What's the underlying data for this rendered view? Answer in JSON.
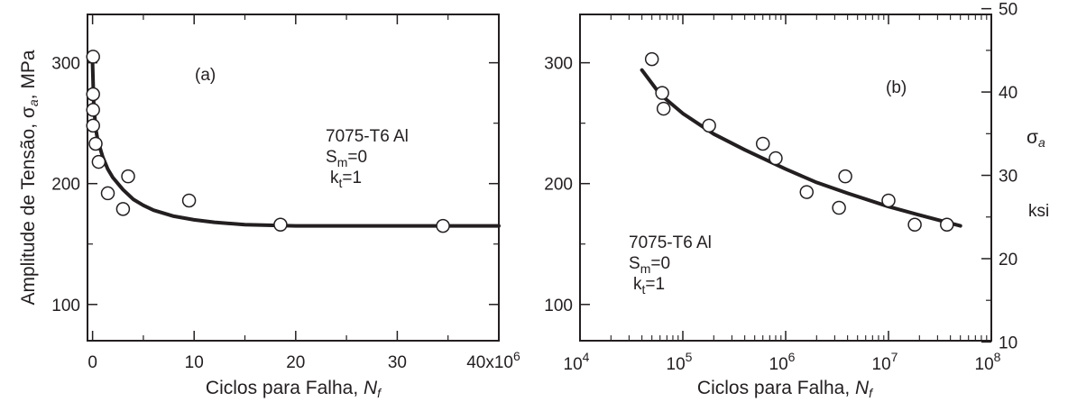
{
  "chart_data": [
    {
      "type": "scatter",
      "panel_label": "(a)",
      "xlabel_text": "Ciclos para Falha, ",
      "xlabel_var": "N",
      "xlabel_sub": "f",
      "ylabel_text": "Amplitude de Tensão, σ",
      "ylabel_sub": "a",
      "ylabel_unit": ", MPa",
      "xlim": [
        -0.5,
        40
      ],
      "ylim": [
        70,
        340
      ],
      "x_ticks": [
        0,
        10,
        20,
        30
      ],
      "x_tick_labels": [
        "0",
        "10",
        "20",
        "30"
      ],
      "x_end_label_base": "40x10",
      "x_end_label_exp": "6",
      "y_ticks": [
        100,
        200,
        300
      ],
      "y_tick_labels": [
        "100",
        "200",
        "300"
      ],
      "annotation": {
        "line1": "7075-T6 Al",
        "sm_main": "S",
        "sm_sub": "m",
        "sm_val": "=0",
        "kt_main": "k",
        "kt_sub": "t",
        "kt_val": "=1"
      },
      "points": [
        {
          "x": 0.05,
          "y": 305
        },
        {
          "x": 0.05,
          "y": 274
        },
        {
          "x": 0.05,
          "y": 261
        },
        {
          "x": 0.05,
          "y": 248
        },
        {
          "x": 0.3,
          "y": 233
        },
        {
          "x": 0.6,
          "y": 218
        },
        {
          "x": 1.5,
          "y": 192
        },
        {
          "x": 3.0,
          "y": 179
        },
        {
          "x": 3.5,
          "y": 206
        },
        {
          "x": 9.5,
          "y": 186
        },
        {
          "x": 18.5,
          "y": 166
        },
        {
          "x": 34.5,
          "y": 165
        }
      ],
      "fit_curve": {
        "x": [
          0,
          0.1,
          0.3,
          0.5,
          1,
          1.5,
          2,
          3,
          4,
          5,
          6,
          8,
          10,
          12,
          15,
          20,
          25,
          30,
          35,
          40
        ],
        "y": [
          300,
          268,
          246,
          236,
          222,
          212,
          205,
          195,
          187,
          182,
          178,
          173,
          170,
          168,
          166,
          165,
          165,
          165,
          165,
          165
        ]
      }
    },
    {
      "type": "scatter",
      "panel_label": "(b)",
      "xscale": "log",
      "xlabel_text": "Ciclos para Falha, ",
      "xlabel_var": "N",
      "xlabel_sub": "f",
      "xlim": [
        10000,
        100000000
      ],
      "ylim": [
        70,
        340
      ],
      "x_ticks": [
        {
          "value": 10000,
          "base": "10",
          "exp": "4"
        },
        {
          "value": 100000,
          "base": "10",
          "exp": "5"
        },
        {
          "value": 1000000,
          "base": "10",
          "exp": "6"
        },
        {
          "value": 10000000,
          "base": "10",
          "exp": "7"
        },
        {
          "value": 100000000,
          "base": "10",
          "exp": "8"
        }
      ],
      "y_ticks": [
        100,
        200,
        300
      ],
      "y_tick_labels": [
        "100",
        "200",
        "300"
      ],
      "y2_ticks": [
        10,
        20,
        30,
        40,
        50
      ],
      "y2_tick_labels": [
        "10",
        "20",
        "30",
        "40",
        "50"
      ],
      "y2lim_ksi": [
        10.153,
        49.313
      ],
      "y2_symbol": "σ",
      "y2_symbol_sub": "a",
      "y2_unit": "ksi",
      "annotation": {
        "line1": "7075-T6 Al",
        "sm_main": "S",
        "sm_sub": "m",
        "sm_val": "=0",
        "kt_main": "k",
        "kt_sub": "t",
        "kt_val": "=1"
      },
      "points": [
        {
          "x": 50000,
          "y": 303
        },
        {
          "x": 63000,
          "y": 275
        },
        {
          "x": 65000,
          "y": 262
        },
        {
          "x": 180000,
          "y": 248
        },
        {
          "x": 600000,
          "y": 233
        },
        {
          "x": 800000,
          "y": 221
        },
        {
          "x": 1600000,
          "y": 193
        },
        {
          "x": 3300000,
          "y": 180
        },
        {
          "x": 3800000,
          "y": 206
        },
        {
          "x": 10000000,
          "y": 186
        },
        {
          "x": 18000000,
          "y": 166
        },
        {
          "x": 37000000,
          "y": 166
        }
      ],
      "fit_curve": {
        "x": [
          40000,
          60000,
          100000,
          200000,
          400000,
          1000000,
          2000000,
          4000000,
          10000000,
          20000000,
          50000000
        ],
        "y": [
          294,
          274,
          258,
          241,
          228,
          212,
          201,
          192,
          181,
          174,
          165
        ]
      }
    }
  ]
}
